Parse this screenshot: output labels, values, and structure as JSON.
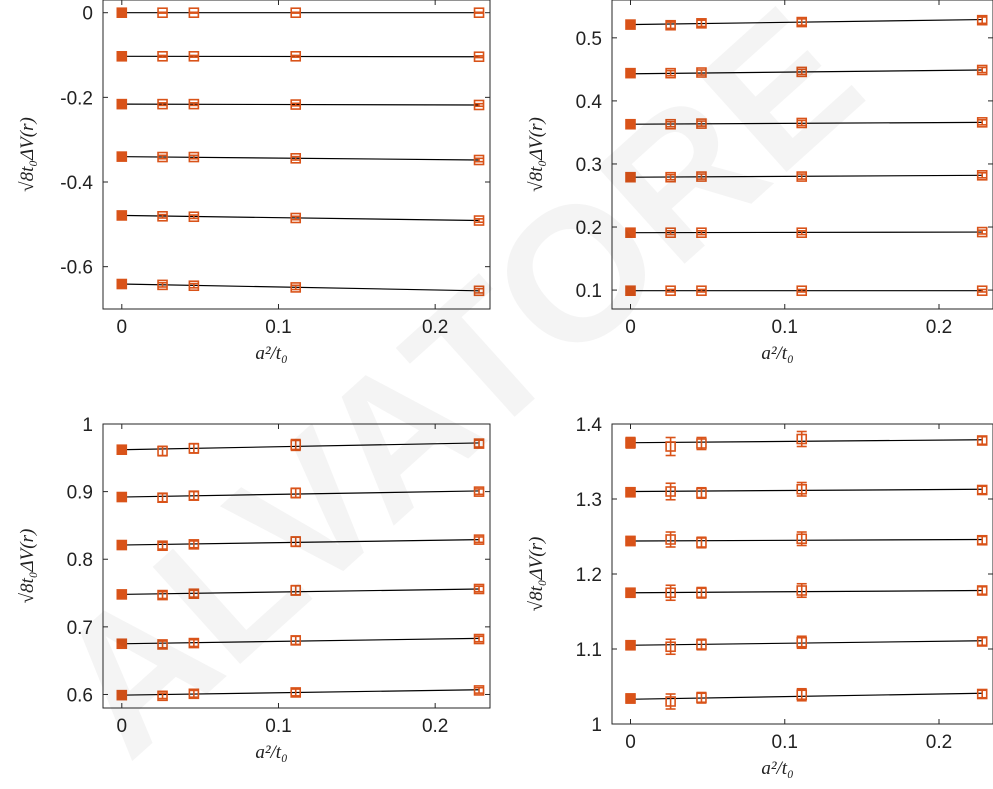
{
  "watermark": {
    "text": "ALVATORE",
    "color": "#f2f2f2"
  },
  "colors": {
    "marker": "#d95319",
    "fit_line": "#000000",
    "axis": "#262626"
  },
  "chart_data": [
    {
      "type": "scatter",
      "xlabel": "a²/t₀",
      "ylabel": "√8t₀ΔV(r)",
      "xlim": [
        -0.012,
        0.235
      ],
      "ylim": [
        -0.7,
        0.03
      ],
      "xticks": [
        0,
        0.1,
        0.2
      ],
      "xtick_labels": [
        "0",
        "0.1",
        "0.2"
      ],
      "yticks": [
        0,
        -0.2,
        -0.4,
        -0.6
      ],
      "ytick_labels": [
        "0",
        "-0.2",
        "-0.4",
        "-0.6"
      ],
      "x": [
        0,
        0.026,
        0.046,
        0.111,
        0.228
      ],
      "series": [
        {
          "values": [
            0.0,
            0.0,
            0.0,
            0.0,
            0.0
          ],
          "errors": [
            0.001,
            0.001,
            0.001,
            0.001,
            0.001
          ],
          "fit": [
            0.0,
            0.0
          ]
        },
        {
          "values": [
            -0.103,
            -0.103,
            -0.103,
            -0.103,
            -0.104
          ],
          "errors": [
            0.002,
            0.002,
            0.002,
            0.002,
            0.002
          ],
          "fit": [
            -0.103,
            -0.104
          ]
        },
        {
          "values": [
            -0.216,
            -0.216,
            -0.216,
            -0.217,
            -0.218
          ],
          "errors": [
            0.003,
            0.003,
            0.003,
            0.003,
            0.003
          ],
          "fit": [
            -0.216,
            -0.218
          ]
        },
        {
          "values": [
            -0.34,
            -0.341,
            -0.341,
            -0.344,
            -0.348
          ],
          "errors": [
            0.004,
            0.004,
            0.004,
            0.004,
            0.004
          ],
          "fit": [
            -0.34,
            -0.348
          ]
        },
        {
          "values": [
            -0.479,
            -0.481,
            -0.482,
            -0.485,
            -0.491
          ],
          "errors": [
            0.004,
            0.004,
            0.004,
            0.004,
            0.004
          ],
          "fit": [
            -0.479,
            -0.491
          ]
        },
        {
          "values": [
            -0.641,
            -0.643,
            -0.645,
            -0.649,
            -0.657
          ],
          "errors": [
            0.005,
            0.005,
            0.005,
            0.005,
            0.005
          ],
          "fit": [
            -0.641,
            -0.657
          ]
        }
      ]
    },
    {
      "type": "scatter",
      "xlabel": "a²/t₀",
      "ylabel": "√8t₀ΔV(r)",
      "xlim": [
        -0.012,
        0.235
      ],
      "ylim": [
        0.07,
        0.56
      ],
      "xticks": [
        0,
        0.1,
        0.2
      ],
      "xtick_labels": [
        "0",
        "0.1",
        "0.2"
      ],
      "yticks": [
        0.1,
        0.2,
        0.3,
        0.4,
        0.5
      ],
      "ytick_labels": [
        "0.1",
        "0.2",
        "0.3",
        "0.4",
        "0.5"
      ],
      "x": [
        0,
        0.026,
        0.046,
        0.111,
        0.228
      ],
      "series": [
        {
          "values": [
            0.099,
            0.099,
            0.099,
            0.099,
            0.099
          ],
          "errors": [
            0.002,
            0.002,
            0.002,
            0.002,
            0.002
          ],
          "fit": [
            0.099,
            0.099
          ]
        },
        {
          "values": [
            0.191,
            0.191,
            0.191,
            0.191,
            0.192
          ],
          "errors": [
            0.003,
            0.003,
            0.003,
            0.003,
            0.003
          ],
          "fit": [
            0.191,
            0.192
          ]
        },
        {
          "values": [
            0.279,
            0.279,
            0.28,
            0.28,
            0.282
          ],
          "errors": [
            0.004,
            0.004,
            0.004,
            0.004,
            0.004
          ],
          "fit": [
            0.279,
            0.282
          ]
        },
        {
          "values": [
            0.363,
            0.363,
            0.364,
            0.365,
            0.366
          ],
          "errors": [
            0.004,
            0.004,
            0.004,
            0.004,
            0.004
          ],
          "fit": [
            0.363,
            0.366
          ]
        },
        {
          "values": [
            0.444,
            0.444,
            0.445,
            0.446,
            0.449
          ],
          "errors": [
            0.004,
            0.004,
            0.004,
            0.004,
            0.004
          ],
          "fit": [
            0.443,
            0.449
          ]
        },
        {
          "values": [
            0.521,
            0.52,
            0.523,
            0.525,
            0.528
          ],
          "errors": [
            0.005,
            0.005,
            0.005,
            0.005,
            0.005
          ],
          "fit": [
            0.521,
            0.529
          ]
        }
      ]
    },
    {
      "type": "scatter",
      "xlabel": "a²/t₀",
      "ylabel": "√8t₀ΔV(r)",
      "xlim": [
        -0.012,
        0.235
      ],
      "ylim": [
        0.58,
        1.0
      ],
      "xticks": [
        0,
        0.1,
        0.2
      ],
      "xtick_labels": [
        "0",
        "0.1",
        "0.2"
      ],
      "yticks": [
        0.6,
        0.7,
        0.8,
        0.9,
        1.0
      ],
      "ytick_labels": [
        "0.6",
        "0.7",
        "0.8",
        "0.9",
        "1"
      ],
      "x": [
        0,
        0.026,
        0.046,
        0.111,
        0.228
      ],
      "series": [
        {
          "values": [
            0.599,
            0.598,
            0.601,
            0.603,
            0.606
          ],
          "errors": [
            0.004,
            0.004,
            0.005,
            0.005,
            0.004
          ],
          "fit": [
            0.599,
            0.607
          ]
        },
        {
          "values": [
            0.675,
            0.674,
            0.676,
            0.68,
            0.682
          ],
          "errors": [
            0.004,
            0.005,
            0.005,
            0.006,
            0.004
          ],
          "fit": [
            0.675,
            0.683
          ]
        },
        {
          "values": [
            0.748,
            0.747,
            0.749,
            0.754,
            0.756
          ],
          "errors": [
            0.004,
            0.005,
            0.005,
            0.007,
            0.004
          ],
          "fit": [
            0.748,
            0.756
          ]
        },
        {
          "values": [
            0.821,
            0.82,
            0.822,
            0.826,
            0.829
          ],
          "errors": [
            0.004,
            0.005,
            0.005,
            0.007,
            0.004
          ],
          "fit": [
            0.821,
            0.829
          ]
        },
        {
          "values": [
            0.892,
            0.891,
            0.894,
            0.898,
            0.9
          ],
          "errors": [
            0.004,
            0.006,
            0.006,
            0.007,
            0.004
          ],
          "fit": [
            0.892,
            0.901
          ]
        },
        {
          "values": [
            0.962,
            0.96,
            0.964,
            0.969,
            0.971
          ],
          "errors": [
            0.005,
            0.007,
            0.007,
            0.008,
            0.005
          ],
          "fit": [
            0.962,
            0.972
          ]
        }
      ]
    },
    {
      "type": "scatter",
      "xlabel": "a²/t₀",
      "ylabel": "√8t₀ΔV(r)",
      "xlim": [
        -0.012,
        0.235
      ],
      "ylim": [
        1.0,
        1.4
      ],
      "xticks": [
        0,
        0.1,
        0.2
      ],
      "xtick_labels": [
        "0",
        "0.1",
        "0.2"
      ],
      "yticks": [
        1.0,
        1.1,
        1.2,
        1.3,
        1.4
      ],
      "ytick_labels": [
        "1",
        "1.1",
        "1.2",
        "1.3",
        "1.4"
      ],
      "x": [
        0,
        0.026,
        0.046,
        0.111,
        0.228
      ],
      "series": [
        {
          "values": [
            1.034,
            1.03,
            1.035,
            1.039,
            1.04
          ],
          "errors": [
            0.006,
            0.01,
            0.007,
            0.008,
            0.005
          ],
          "fit": [
            1.033,
            1.041
          ]
        },
        {
          "values": [
            1.105,
            1.103,
            1.106,
            1.109,
            1.11
          ],
          "errors": [
            0.006,
            0.01,
            0.007,
            0.008,
            0.005
          ],
          "fit": [
            1.105,
            1.111
          ]
        },
        {
          "values": [
            1.175,
            1.175,
            1.175,
            1.178,
            1.178
          ],
          "errors": [
            0.006,
            0.01,
            0.007,
            0.009,
            0.005
          ],
          "fit": [
            1.175,
            1.178
          ]
        },
        {
          "values": [
            1.244,
            1.246,
            1.242,
            1.247,
            1.245
          ],
          "errors": [
            0.006,
            0.01,
            0.007,
            0.009,
            0.005
          ],
          "fit": [
            1.244,
            1.246
          ]
        },
        {
          "values": [
            1.309,
            1.31,
            1.308,
            1.313,
            1.312
          ],
          "errors": [
            0.006,
            0.011,
            0.007,
            0.009,
            0.005
          ],
          "fit": [
            1.31,
            1.313
          ]
        },
        {
          "values": [
            1.375,
            1.37,
            1.374,
            1.38,
            1.378
          ],
          "errors": [
            0.007,
            0.012,
            0.008,
            0.01,
            0.005
          ],
          "fit": [
            1.375,
            1.379
          ]
        }
      ]
    }
  ]
}
